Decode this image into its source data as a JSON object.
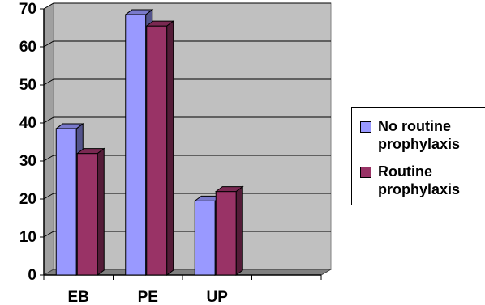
{
  "chart_data": {
    "type": "bar",
    "title": "",
    "xlabel": "",
    "ylabel": "",
    "categories": [
      "EB",
      "PE",
      "UP"
    ],
    "series": [
      {
        "name": "No routine prophylaxis",
        "values": [
          38.5,
          68.5,
          19.5
        ],
        "color": "#9999ff"
      },
      {
        "name": "Routine prophylaxis",
        "values": [
          32,
          65.5,
          22
        ],
        "color": "#993366"
      }
    ],
    "ylim": [
      0,
      70
    ],
    "yticks": [
      "0",
      "10",
      "20",
      "30",
      "40",
      "50",
      "60",
      "70"
    ],
    "grid": true,
    "legend_position": "right",
    "plot_background": "#c0c0c0",
    "wall_background": "#c0c0c0"
  }
}
